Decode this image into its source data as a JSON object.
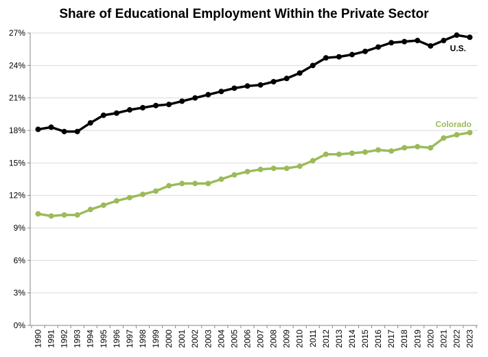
{
  "chart_data": {
    "type": "line",
    "title": "Share of Educational Employment Within the Private Sector",
    "xlabel": "",
    "ylabel": "",
    "x": [
      "1990",
      "1991",
      "1992",
      "1993",
      "1994",
      "1995",
      "1996",
      "1997",
      "1998",
      "1999",
      "2000",
      "2001",
      "2002",
      "2003",
      "2004",
      "2005",
      "2006",
      "2007",
      "2008",
      "2009",
      "2010",
      "2011",
      "2012",
      "2013",
      "2014",
      "2015",
      "2016",
      "2017",
      "2018",
      "2019",
      "2020",
      "2021",
      "2022",
      "2023"
    ],
    "ylim": [
      0,
      27
    ],
    "yticks": [
      0,
      3,
      6,
      9,
      12,
      15,
      18,
      21,
      24,
      27
    ],
    "ytick_labels": [
      "0%",
      "3%",
      "6%",
      "9%",
      "12%",
      "15%",
      "18%",
      "21%",
      "24%",
      "27%"
    ],
    "grid": "horizontal",
    "series": [
      {
        "name": "U.S.",
        "color": "#000000",
        "values": [
          18.1,
          18.3,
          17.9,
          17.9,
          18.7,
          19.4,
          19.6,
          19.9,
          20.1,
          20.3,
          20.4,
          20.7,
          21.0,
          21.3,
          21.6,
          21.9,
          22.1,
          22.2,
          22.5,
          22.8,
          23.3,
          24.0,
          24.7,
          24.8,
          25.0,
          25.3,
          25.7,
          26.1,
          26.2,
          26.3,
          25.8,
          26.3,
          26.8,
          26.6
        ]
      },
      {
        "name": "Colorado",
        "color": "#9bbb59",
        "values": [
          10.3,
          10.1,
          10.2,
          10.2,
          10.7,
          11.1,
          11.5,
          11.8,
          12.1,
          12.4,
          12.9,
          13.1,
          13.1,
          13.1,
          13.5,
          13.9,
          14.2,
          14.4,
          14.5,
          14.5,
          14.7,
          15.2,
          15.8,
          15.8,
          15.9,
          16.0,
          16.2,
          16.1,
          16.4,
          16.5,
          16.4,
          17.3,
          17.6,
          17.8
        ]
      }
    ]
  }
}
